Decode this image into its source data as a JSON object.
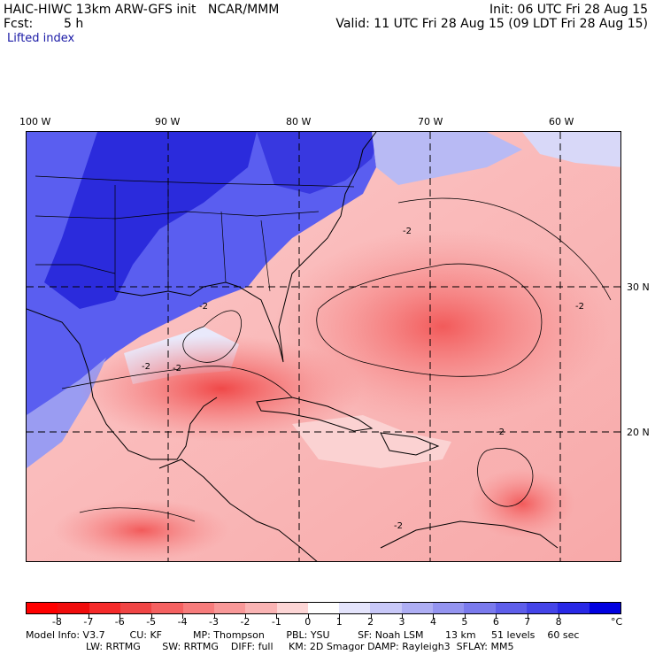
{
  "header": {
    "model_title": "HAIC-HIWC 13km ARW-GFS init   NCAR/MMM",
    "init": "Init: 06 UTC Fri 28 Aug 15",
    "fcst_label": "Fcst:",
    "fcst_value": "5 h",
    "valid": "Valid: 11 UTC Fri 28 Aug 15 (09 LDT Fri 28 Aug 15)",
    "field": "Lifted index"
  },
  "axes": {
    "lon_labels": [
      "100 W",
      "90 W",
      "80 W",
      "70 W",
      "60 W"
    ],
    "lat_labels": [
      "30 N",
      "20 N"
    ]
  },
  "map_annotations": {
    "contour_value": "-2"
  },
  "legend": {
    "colors": [
      "#ff0000",
      "#f00c0c",
      "#f52a2a",
      "#f04545",
      "#f56161",
      "#f77c7c",
      "#f89898",
      "#fab4b4",
      "#fdd6d6",
      "#ffffff",
      "#e4e4fc",
      "#c8c8f8",
      "#aeaef4",
      "#9494f0",
      "#7a7aed",
      "#5e5eea",
      "#4444e8",
      "#2828e6",
      "#0000e0"
    ],
    "labels": [
      "-8",
      "-7",
      "-6",
      "-5",
      "-4",
      "-3",
      "-2",
      "-1",
      "0",
      "1",
      "2",
      "3",
      "4",
      "5",
      "6",
      "7",
      "8"
    ],
    "unit": "°C"
  },
  "footer": {
    "line1": "Model Info: V3.7        CU: KF          MP: Thompson       PBL: YSU         SF: Noah LSM       13 km     51 levels    60 sec",
    "line2": "LW: RRTMG       SW: RRTMG    DIFF: full     KM: 2D Smagor DAMP: Rayleigh3  SFLAY: MM5"
  }
}
